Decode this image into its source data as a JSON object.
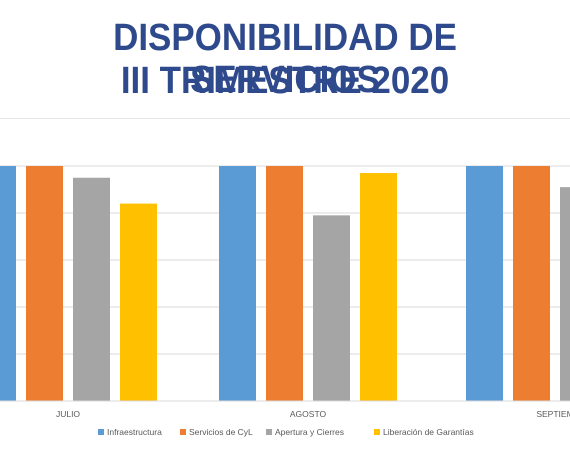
{
  "title": {
    "line1": "DISPONIBILIDAD DE SERVICIOS",
    "line2": "III TRIMESTRE 2020"
  },
  "chart_data": {
    "type": "bar",
    "categories": [
      "JULIO",
      "AGOSTO",
      "SEPTIEMBRE"
    ],
    "category_labels_visible": [
      "JULIO",
      "AGOSTO",
      "SEPTIEM"
    ],
    "ylim": [
      0,
      100
    ],
    "grid": true,
    "legend_position": "bottom",
    "series": [
      {
        "name": "Infraestructura",
        "color": "#5b9bd5",
        "values": [
          100,
          100,
          100
        ]
      },
      {
        "name": "Servicios de CyL",
        "color": "#ed7d31",
        "values": [
          100,
          100,
          100
        ]
      },
      {
        "name": "Apertura y Cierres",
        "color": "#a5a5a5",
        "values": [
          95,
          79,
          91
        ]
      },
      {
        "name": "Liberación de Garantías",
        "color": "#ffc000",
        "values": [
          84,
          97,
          null
        ]
      }
    ]
  }
}
